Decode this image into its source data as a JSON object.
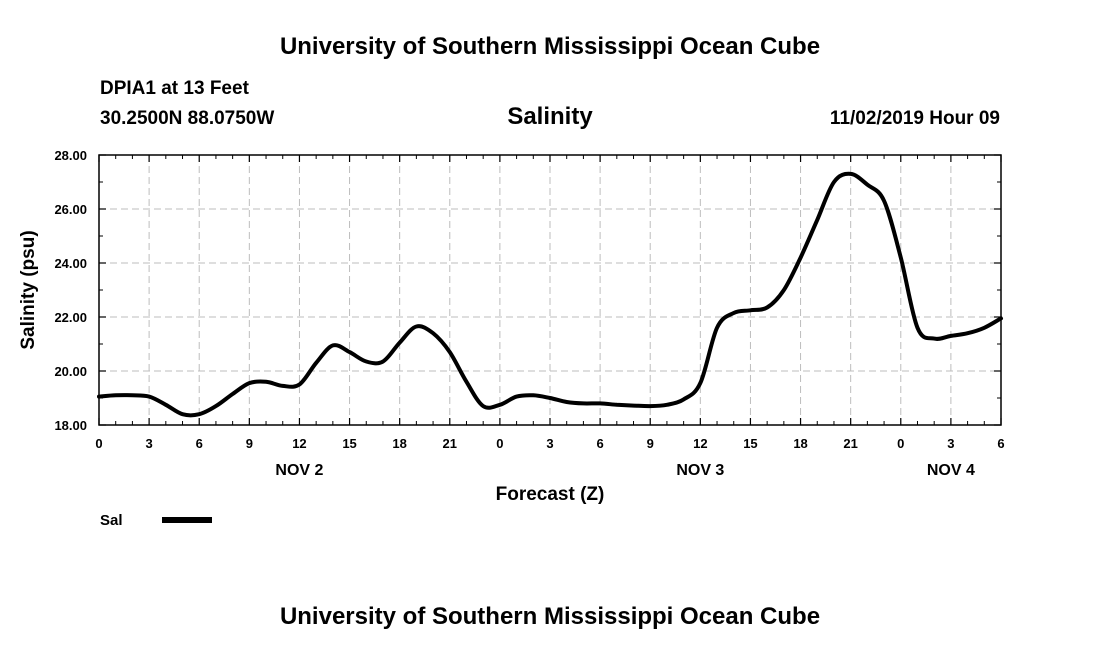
{
  "header": {
    "title_top": "University of Southern Mississippi Ocean Cube",
    "station": "DPIA1 at 13 Feet",
    "coords": "30.2500N 88.0750W",
    "variable": "Salinity",
    "timestamp": "11/02/2019 Hour 09",
    "title_bottom": "University of Southern Mississippi Ocean Cube"
  },
  "chart_data": {
    "type": "line",
    "title": "Salinity",
    "xlabel": "Forecast (Z)",
    "ylabel": "Salinity (psu)",
    "xlim": [
      0,
      54
    ],
    "ylim": [
      18,
      28
    ],
    "grid": true,
    "x_tick_labels": [
      "0",
      "3",
      "6",
      "9",
      "12",
      "15",
      "18",
      "21",
      "0",
      "3",
      "6",
      "9",
      "12",
      "15",
      "18",
      "21",
      "0",
      "3",
      "6"
    ],
    "y_tick_labels": [
      "18.00",
      "20.00",
      "22.00",
      "24.00",
      "26.00",
      "28.00"
    ],
    "date_labels": [
      {
        "label": "NOV 2",
        "hour": 12
      },
      {
        "label": "NOV 3",
        "hour": 36
      },
      {
        "label": "NOV 4",
        "hour": 51
      }
    ],
    "legend": [
      {
        "name": "Sal",
        "color": "#000000"
      }
    ],
    "series": [
      {
        "name": "Sal",
        "x": [
          0,
          1,
          2,
          3,
          4,
          5,
          6,
          7,
          8,
          9,
          10,
          11,
          12,
          13,
          14,
          15,
          16,
          17,
          18,
          19,
          20,
          21,
          22,
          23,
          24,
          25,
          26,
          27,
          28,
          29,
          30,
          31,
          32,
          33,
          34,
          35,
          36,
          37,
          38,
          39,
          40,
          41,
          42,
          43,
          44,
          45,
          46,
          47,
          48,
          49,
          50,
          51,
          52,
          53,
          54
        ],
        "values": [
          19.05,
          19.1,
          19.1,
          19.05,
          18.75,
          18.4,
          18.4,
          18.7,
          19.15,
          19.55,
          19.6,
          19.45,
          19.5,
          20.3,
          20.95,
          20.7,
          20.35,
          20.35,
          21.05,
          21.65,
          21.4,
          20.7,
          19.6,
          18.7,
          18.75,
          19.05,
          19.1,
          19.0,
          18.85,
          18.8,
          18.8,
          18.75,
          18.72,
          18.7,
          18.75,
          18.95,
          19.55,
          21.6,
          22.15,
          22.25,
          22.35,
          23.0,
          24.2,
          25.6,
          27.0,
          27.3,
          26.9,
          26.3,
          24.2,
          21.6,
          21.2,
          21.3,
          21.4,
          21.6,
          21.95
        ]
      }
    ]
  }
}
